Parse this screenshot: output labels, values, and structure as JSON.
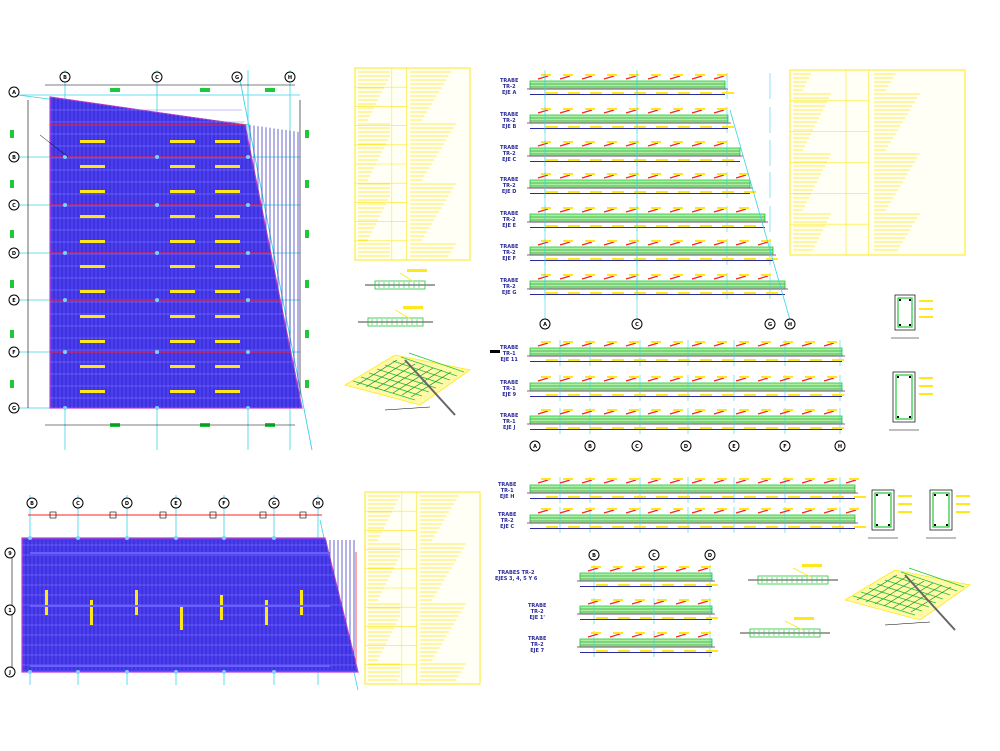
{
  "axes": {
    "plan_top_cols": [
      "B",
      "C",
      "G",
      "H"
    ],
    "plan_top_rows": [
      "A",
      "B",
      "C",
      "D",
      "E",
      "F",
      "G"
    ],
    "plan_bottom_cols": [
      "B",
      "C",
      "D",
      "E",
      "F",
      "G",
      "H"
    ],
    "plan_bottom_rows": [
      "9",
      "1",
      "J"
    ],
    "elev_top_cols": [
      "A",
      "C",
      "G",
      "H"
    ],
    "elev_mid_cols": [
      "A",
      "B",
      "C",
      "D",
      "E",
      "F",
      "H"
    ],
    "elev_bottom_cols": [
      "B",
      "C",
      "D"
    ]
  },
  "beams_top": [
    {
      "label": "TRABE\nTR-2\nEJE A"
    },
    {
      "label": "TRABE\nTR-2\nEJE B"
    },
    {
      "label": "TRABE\nTR-2\nEJE C"
    },
    {
      "label": "TRABE\nTR-2\nEJE D"
    },
    {
      "label": "TRABE\nTR-2\nEJE E"
    },
    {
      "label": "TRABE\nTR-2\nEJE F"
    },
    {
      "label": "TRABE\nTR-2\nEJE G"
    }
  ],
  "beams_mid": [
    {
      "label": "TRABE\nTR-1\nEJE 11"
    },
    {
      "label": "TRABE\nTR-1\nEJE 9"
    },
    {
      "label": "TRABE\nTR-1\nEJE J"
    }
  ],
  "beams_low": [
    {
      "label": "TRABE\nTR-1\nEJE H"
    },
    {
      "label": "TRABE\nTR-2\nEJE C"
    }
  ],
  "beams_bottom": [
    {
      "label": "TRABES TR-2\nEJES 3, 4, 5 Y 6"
    },
    {
      "label": "TRABE\nTR-2\nEJE 1'"
    },
    {
      "label": "TRABE\nTR-2\nEJE 7"
    }
  ],
  "colors": {
    "plan_fill": "#4b3df0",
    "outline": "#c040d0",
    "axis": "#3ad3e8",
    "rebar": "#1fc83a",
    "annot": "#ffe81a",
    "red": "#ff2020",
    "dark": "#2a2a9a"
  }
}
